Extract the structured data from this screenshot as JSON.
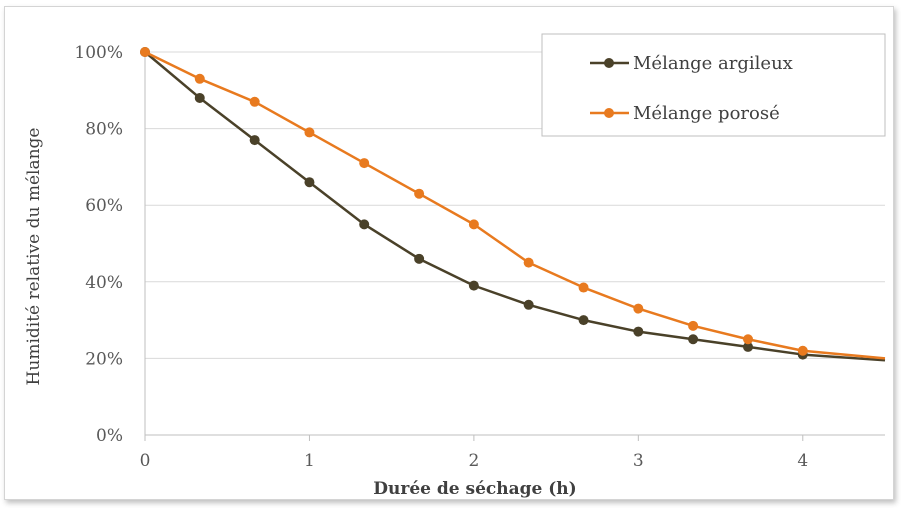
{
  "chart_data": {
    "type": "line",
    "xlabel": "Durée de séchage (h)",
    "ylabel": "Humidité relative du mélange",
    "xlim": [
      0,
      4.5
    ],
    "ylim": [
      0,
      100
    ],
    "x_ticks": [
      "0",
      "1",
      "2",
      "3",
      "4"
    ],
    "y_ticks": [
      "0%",
      "20%",
      "40%",
      "60%",
      "80%",
      "100%"
    ],
    "grid": "horizontal",
    "legend_position": "top-right",
    "series": [
      {
        "name": "Mélange argileux",
        "color": "#4a4129",
        "x": [
          0,
          0.333,
          0.667,
          1,
          1.333,
          1.667,
          2,
          2.333,
          2.667,
          3,
          3.333,
          3.667,
          4,
          4.5
        ],
        "y": [
          100,
          88,
          77,
          66,
          55,
          46,
          39,
          34,
          30,
          27,
          25,
          23,
          21,
          19.5
        ]
      },
      {
        "name": "Mélange porosé",
        "color": "#e87a1f",
        "x": [
          0,
          0.333,
          0.667,
          1,
          1.333,
          1.667,
          2,
          2.333,
          2.667,
          3,
          3.333,
          3.667,
          4,
          4.5
        ],
        "y": [
          100,
          93,
          87,
          79,
          71,
          63,
          55,
          45,
          38.5,
          33,
          28.5,
          25,
          22,
          20
        ]
      }
    ]
  }
}
